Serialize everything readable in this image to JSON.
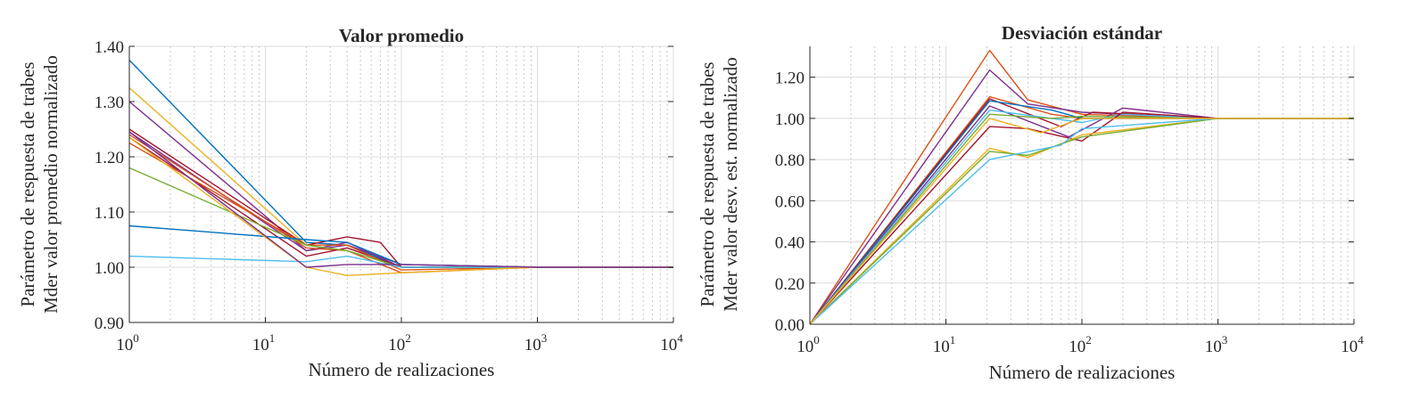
{
  "chart_data": [
    {
      "type": "line",
      "title": "Valor promedio",
      "xlabel": "Número de realizaciones",
      "ylabel": [
        "Parámetro de respuesta de trabes",
        "Mder valor promedio normalizado"
      ],
      "xscale": "log",
      "xlim": [
        1,
        10000
      ],
      "ylim": [
        0.9,
        1.4
      ],
      "yticks": [
        "0.90",
        "1.00",
        "1.10",
        "1.20",
        "1.30",
        "1.40"
      ],
      "xtick_base": "10",
      "xtick_exponents": [
        "0",
        "1",
        "2",
        "3",
        "4"
      ],
      "grid": true,
      "series": [
        {
          "color": "#0072BD",
          "values": [
            [
              1,
              1.375
            ],
            [
              20,
              1.045
            ],
            [
              40,
              1.04
            ],
            [
              100,
              1.0
            ],
            [
              1000,
              1.0
            ],
            [
              10000,
              1.0
            ]
          ]
        },
        {
          "color": "#EDB120",
          "values": [
            [
              1,
              1.325
            ],
            [
              20,
              1.04
            ],
            [
              40,
              1.03
            ],
            [
              100,
              1.0
            ],
            [
              1000,
              1.0
            ],
            [
              10000,
              1.0
            ]
          ]
        },
        {
          "color": "#7E2F8E",
          "values": [
            [
              1,
              1.3
            ],
            [
              20,
              1.03
            ],
            [
              40,
              1.045
            ],
            [
              100,
              1.0
            ],
            [
              1000,
              1.0
            ],
            [
              10000,
              1.0
            ]
          ]
        },
        {
          "color": "#A2142F",
          "values": [
            [
              1,
              1.25
            ],
            [
              20,
              1.04
            ],
            [
              40,
              1.055
            ],
            [
              70,
              1.045
            ],
            [
              100,
              1.0
            ],
            [
              1000,
              1.0
            ],
            [
              10000,
              1.0
            ]
          ]
        },
        {
          "color": "#7E2F8E",
          "values": [
            [
              1,
              1.245
            ],
            [
              20,
              1.03
            ],
            [
              40,
              1.04
            ],
            [
              100,
              1.005
            ],
            [
              1000,
              1.0
            ],
            [
              10000,
              1.0
            ]
          ]
        },
        {
          "color": "#D95319",
          "values": [
            [
              1,
              1.24
            ],
            [
              20,
              1.035
            ],
            [
              40,
              1.03
            ],
            [
              100,
              0.99
            ],
            [
              1000,
              1.0
            ],
            [
              10000,
              1.0
            ]
          ]
        },
        {
          "color": "#A2142F",
          "values": [
            [
              1,
              1.235
            ],
            [
              20,
              1.02
            ],
            [
              40,
              1.035
            ],
            [
              100,
              1.0
            ],
            [
              1000,
              1.0
            ],
            [
              10000,
              1.0
            ]
          ]
        },
        {
          "color": "#D95319",
          "values": [
            [
              1,
              1.225
            ],
            [
              20,
              1.04
            ],
            [
              40,
              1.04
            ],
            [
              100,
              0.995
            ],
            [
              1000,
              1.0
            ],
            [
              10000,
              1.0
            ]
          ]
        },
        {
          "color": "#77AC30",
          "values": [
            [
              1,
              1.18
            ],
            [
              20,
              1.04
            ],
            [
              40,
              1.03
            ],
            [
              100,
              1.0
            ],
            [
              1000,
              1.0
            ],
            [
              10000,
              1.0
            ]
          ]
        },
        {
          "color": "#0072BD",
          "values": [
            [
              1,
              1.075
            ],
            [
              20,
              1.05
            ],
            [
              40,
              1.045
            ],
            [
              100,
              1.005
            ],
            [
              1000,
              1.0
            ],
            [
              10000,
              1.0
            ]
          ]
        },
        {
          "color": "#4DBEEE",
          "values": [
            [
              1,
              1.02
            ],
            [
              20,
              1.01
            ],
            [
              40,
              1.02
            ],
            [
              100,
              1.0
            ],
            [
              1000,
              1.0
            ],
            [
              10000,
              1.0
            ]
          ]
        },
        {
          "color": "#EDB120",
          "values": [
            [
              1,
              1.235
            ],
            [
              20,
              1.0
            ],
            [
              40,
              0.985
            ],
            [
              100,
              0.99
            ],
            [
              1000,
              1.0
            ],
            [
              10000,
              1.0
            ]
          ]
        },
        {
          "color": "#7E2F8E",
          "values": [
            [
              1,
              1.245
            ],
            [
              20,
              1.0
            ],
            [
              40,
              1.005
            ],
            [
              100,
              1.005
            ],
            [
              1000,
              1.0
            ],
            [
              10000,
              1.0
            ]
          ]
        }
      ]
    },
    {
      "type": "line",
      "title": "Desviación estándar",
      "xlabel": "Número de realizaciones",
      "ylabel": [
        "Parámetro de respuesta de trabes",
        "Mder valor desv. est. normalizado"
      ],
      "xscale": "log",
      "xlim": [
        1,
        10000
      ],
      "ylim": [
        0.0,
        1.35
      ],
      "yticks": [
        "0.00",
        "0.20",
        "0.40",
        "0.60",
        "0.80",
        "1.00",
        "1.20"
      ],
      "xtick_base": "10",
      "xtick_exponents": [
        "0",
        "1",
        "2",
        "3",
        "4"
      ],
      "grid": true,
      "series": [
        {
          "color": "#D95319",
          "values": [
            [
              1,
              0.0
            ],
            [
              21,
              1.33
            ],
            [
              40,
              1.09
            ],
            [
              100,
              1.02
            ],
            [
              1000,
              1.0
            ],
            [
              10000,
              1.0
            ]
          ]
        },
        {
          "color": "#7E2F8E",
          "values": [
            [
              1,
              0.0
            ],
            [
              21,
              1.235
            ],
            [
              40,
              1.07
            ],
            [
              100,
              1.03
            ],
            [
              1000,
              1.0
            ],
            [
              10000,
              1.0
            ]
          ]
        },
        {
          "color": "#D95319",
          "values": [
            [
              1,
              0.0
            ],
            [
              21,
              1.105
            ],
            [
              60,
              1.02
            ],
            [
              100,
              1.0
            ],
            [
              1000,
              1.0
            ],
            [
              10000,
              1.0
            ]
          ]
        },
        {
          "color": "#A2142F",
          "values": [
            [
              1,
              0.0
            ],
            [
              21,
              1.095
            ],
            [
              70,
              0.96
            ],
            [
              120,
              1.03
            ],
            [
              1000,
              1.0
            ],
            [
              10000,
              1.0
            ]
          ]
        },
        {
          "color": "#0072BD",
          "values": [
            [
              1,
              0.0
            ],
            [
              21,
              1.085
            ],
            [
              60,
              1.04
            ],
            [
              100,
              1.0
            ],
            [
              1000,
              1.0
            ],
            [
              10000,
              1.0
            ]
          ]
        },
        {
          "color": "#7E2F8E",
          "values": [
            [
              1,
              0.0
            ],
            [
              21,
              1.06
            ],
            [
              80,
              0.91
            ],
            [
              200,
              1.05
            ],
            [
              1000,
              1.0
            ],
            [
              10000,
              1.0
            ]
          ]
        },
        {
          "color": "#4DBEEE",
          "values": [
            [
              1,
              0.0
            ],
            [
              21,
              1.04
            ],
            [
              100,
              0.98
            ],
            [
              200,
              1.02
            ],
            [
              1000,
              1.0
            ],
            [
              10000,
              1.0
            ]
          ]
        },
        {
          "color": "#77AC30",
          "values": [
            [
              1,
              0.0
            ],
            [
              21,
              1.02
            ],
            [
              60,
              1.0
            ],
            [
              100,
              1.01
            ],
            [
              1000,
              1.0
            ],
            [
              10000,
              1.0
            ]
          ]
        },
        {
          "color": "#A2142F",
          "values": [
            [
              1,
              0.0
            ],
            [
              21,
              0.96
            ],
            [
              40,
              0.95
            ],
            [
              100,
              0.89
            ],
            [
              200,
              1.03
            ],
            [
              1000,
              1.0
            ],
            [
              10000,
              1.0
            ]
          ]
        },
        {
          "color": "#EDB120",
          "values": [
            [
              1,
              0.0
            ],
            [
              21,
              0.855
            ],
            [
              40,
              0.81
            ],
            [
              100,
              0.92
            ],
            [
              1000,
              1.0
            ],
            [
              10000,
              1.0
            ]
          ]
        },
        {
          "color": "#77AC30",
          "values": [
            [
              1,
              0.0
            ],
            [
              21,
              0.84
            ],
            [
              40,
              0.82
            ],
            [
              100,
              0.91
            ],
            [
              1000,
              1.0
            ],
            [
              10000,
              1.0
            ]
          ]
        },
        {
          "color": "#4DBEEE",
          "values": [
            [
              1,
              0.0
            ],
            [
              21,
              0.8
            ],
            [
              70,
              0.87
            ],
            [
              100,
              0.95
            ],
            [
              1000,
              1.0
            ],
            [
              10000,
              1.0
            ]
          ]
        },
        {
          "color": "#EDB120",
          "values": [
            [
              1,
              0.0
            ],
            [
              21,
              1.0
            ],
            [
              50,
              0.93
            ],
            [
              100,
              1.0
            ],
            [
              1000,
              1.0
            ],
            [
              10000,
              1.0
            ]
          ]
        }
      ]
    }
  ]
}
